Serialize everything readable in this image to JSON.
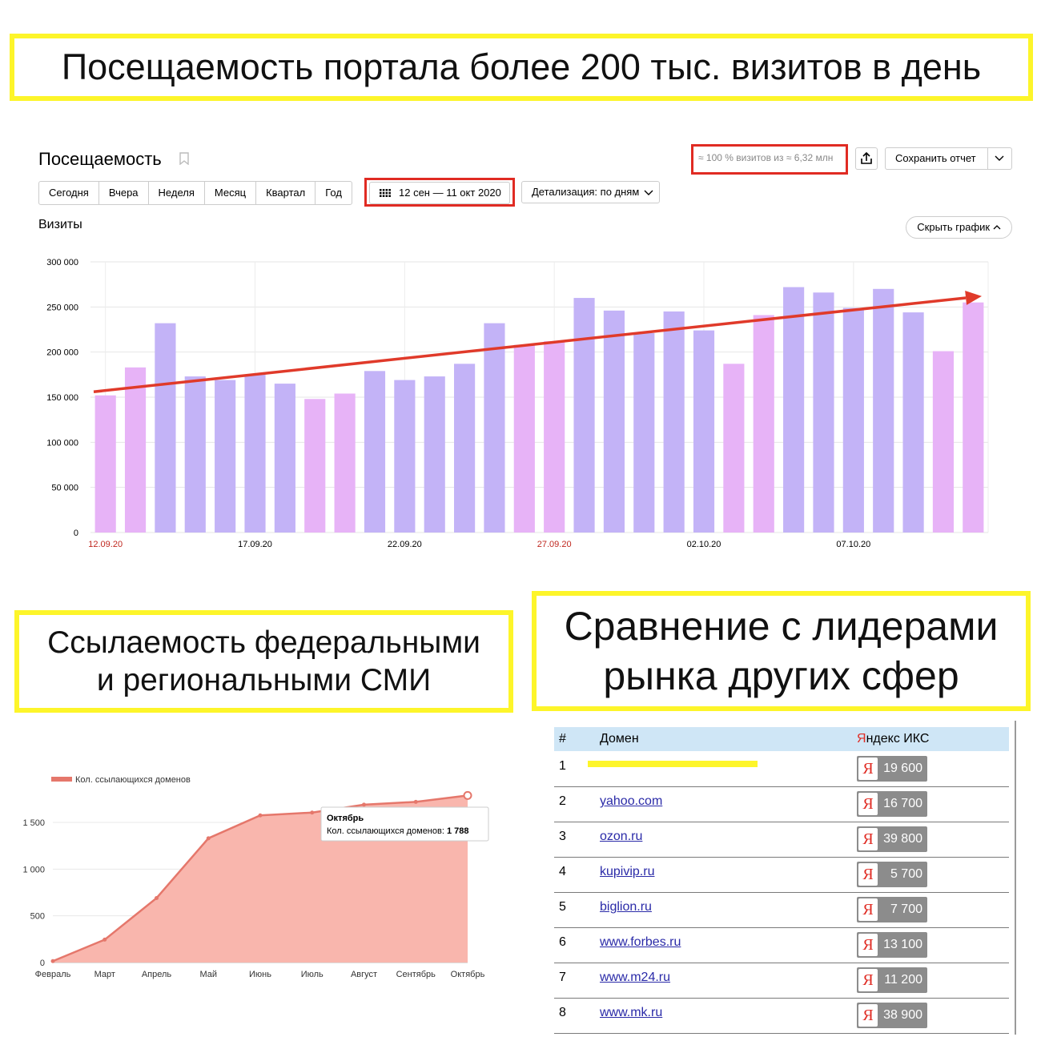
{
  "banners": {
    "top": "Посещаемость портала более 200 тыс. визитов в день",
    "left_line1": "Ссылаемость федеральными",
    "left_line2": "и региональными СМИ",
    "right_line1": "Сравнение с лидерами",
    "right_line2": "рынка других сфер"
  },
  "metrika": {
    "title": "Посещаемость",
    "sample_info": "≈ 100 % визитов из ≈ 6,32 млн",
    "save_report": "Сохранить отчет",
    "periods": [
      "Сегодня",
      "Вчера",
      "Неделя",
      "Месяц",
      "Квартал",
      "Год"
    ],
    "date_range": "12 сен — 11 окт 2020",
    "detail": "Детализация: по дням",
    "section": "Визиты",
    "hide_chart": "Скрыть график"
  },
  "links_table": {
    "headers": {
      "num": "#",
      "domain": "Домен",
      "iks_y": "Я",
      "iks_rest": "ндекс ИКС"
    },
    "rows": [
      {
        "num": "1",
        "domain": "",
        "iks": "19 600"
      },
      {
        "num": "2",
        "domain": "yahoo.com",
        "iks": "16 700"
      },
      {
        "num": "3",
        "domain": "ozon.ru",
        "iks": "39 800"
      },
      {
        "num": "4",
        "domain": "kupivip.ru",
        "iks": "5 700"
      },
      {
        "num": "5",
        "domain": "biglion.ru",
        "iks": "7 700"
      },
      {
        "num": "6",
        "domain": "www.forbes.ru",
        "iks": "13 100"
      },
      {
        "num": "7",
        "domain": "www.m24.ru",
        "iks": "11 200"
      },
      {
        "num": "8",
        "domain": "www.mk.ru",
        "iks": "38 900"
      }
    ],
    "iks_letter": "Я"
  },
  "colors": {
    "weekday_bar": "#c3b3f7",
    "weekend_bar": "#e7b3f7",
    "trend": "#e03a2a",
    "area_fill": "#f9b6ad",
    "area_line": "#e5776b",
    "highlight_yellow": "#fdf52a",
    "red_box": "#e02b23"
  },
  "chart_data": [
    {
      "type": "bar",
      "ylabel": "",
      "ylim": [
        0,
        300000
      ],
      "yticks": [
        "0",
        "50 000",
        "100 000",
        "150 000",
        "200 000",
        "250 000",
        "300 000"
      ],
      "x_tick_labels": [
        {
          "index": 0,
          "label": "12.09.20",
          "weekend": true
        },
        {
          "index": 5,
          "label": "17.09.20",
          "weekend": false
        },
        {
          "index": 10,
          "label": "22.09.20",
          "weekend": false
        },
        {
          "index": 15,
          "label": "27.09.20",
          "weekend": true
        },
        {
          "index": 20,
          "label": "02.10.20",
          "weekend": false
        },
        {
          "index": 25,
          "label": "07.10.20",
          "weekend": false
        }
      ],
      "values": [
        152000,
        183000,
        232000,
        173000,
        169000,
        175000,
        165000,
        148000,
        154000,
        179000,
        169000,
        173000,
        187000,
        232000,
        208000,
        212000,
        260000,
        246000,
        221000,
        245000,
        224000,
        187000,
        241000,
        272000,
        266000,
        249000,
        270000,
        244000,
        201000,
        255000
      ],
      "weekend": [
        true,
        true,
        false,
        false,
        false,
        false,
        false,
        true,
        true,
        false,
        false,
        false,
        false,
        false,
        true,
        true,
        false,
        false,
        false,
        false,
        false,
        true,
        true,
        false,
        false,
        false,
        false,
        false,
        true,
        true
      ],
      "trend": {
        "from": 156000,
        "to": 262000
      },
      "grid": true
    },
    {
      "type": "area",
      "categories": [
        "Февраль",
        "Март",
        "Апрель",
        "Май",
        "Июнь",
        "Июль",
        "Август",
        "Сентябрь",
        "Октябрь"
      ],
      "series": [
        {
          "name": "Кол. ссылающихся доменов",
          "values": [
            15,
            245,
            690,
            1330,
            1575,
            1605,
            1690,
            1720,
            1788
          ]
        }
      ],
      "yticks": [
        "0",
        "500",
        "1 000",
        "1 500"
      ],
      "ylim": [
        0,
        1800
      ],
      "legend": "top-left",
      "tooltip": {
        "title": "Октябрь",
        "label": "Кол. ссылающихся доменов:",
        "value": "1 788"
      }
    }
  ]
}
